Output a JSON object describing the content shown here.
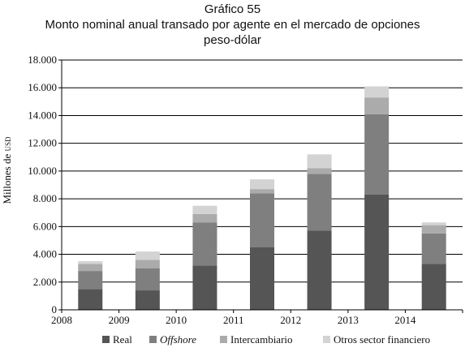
{
  "chart_data": {
    "type": "bar",
    "stacked": true,
    "title_lines": [
      "Gráfico 55",
      "Monto nominal anual transado por agente en el mercado de opciones",
      "peso-dólar"
    ],
    "ylabel_main": "Millones de ",
    "ylabel_unit": "USD",
    "xlabel": "",
    "categories": [
      "2008",
      "2009",
      "2010",
      "2011",
      "2012",
      "2013",
      "2014"
    ],
    "ylim": [
      0,
      18000
    ],
    "yticks": [
      0,
      2000,
      4000,
      6000,
      8000,
      10000,
      12000,
      14000,
      16000,
      18000
    ],
    "ytick_labels": [
      "0",
      "2.000",
      "4.000",
      "6.000",
      "8.000",
      "10.000",
      "12.000",
      "14.000",
      "16.000",
      "18.000"
    ],
    "grid": "horizontal",
    "legend_position": "bottom",
    "series": [
      {
        "name": "Real",
        "italic": false,
        "color": "#555555",
        "values": [
          1500,
          1400,
          3200,
          4500,
          5700,
          8300,
          3300
        ]
      },
      {
        "name": "Offshore",
        "italic": true,
        "color": "#7f7f7f",
        "values": [
          1300,
          1600,
          3100,
          3900,
          4100,
          5800,
          2200
        ]
      },
      {
        "name": "Intercambiario",
        "italic": false,
        "color": "#ababab",
        "values": [
          500,
          600,
          600,
          300,
          400,
          1200,
          600
        ]
      },
      {
        "name": "Otros sector financiero",
        "italic": false,
        "color": "#d3d3d3",
        "values": [
          200,
          600,
          600,
          700,
          1000,
          800,
          200
        ]
      }
    ]
  }
}
